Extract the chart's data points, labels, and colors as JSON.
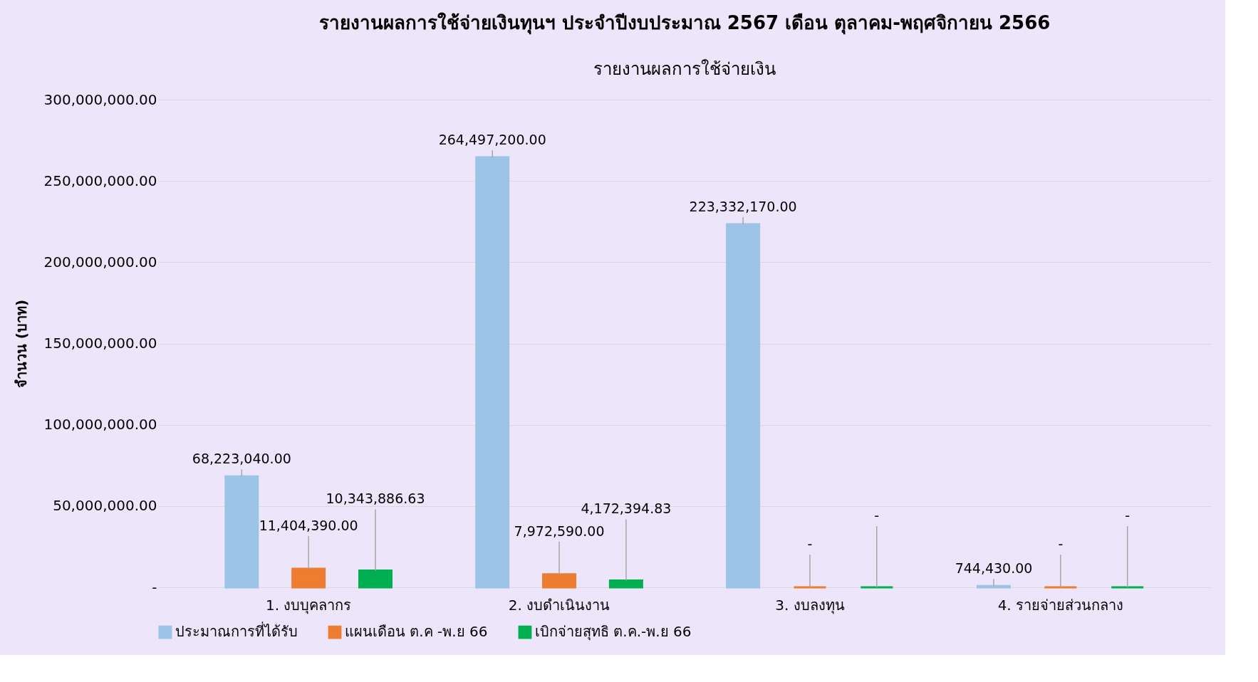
{
  "chart_data": {
    "type": "bar",
    "title": "รายงานผลการใช้จ่ายเงินทุนฯ ประจำปีงบประมาณ 2567 เดือน ตุลาคม-พฤศจิกายน 2566",
    "subtitle": "รายงานผลการใช้จ่ายเงิน",
    "ylabel": "จำนวน (บาท)",
    "categories": [
      "1. งบบุคลากร",
      "2. งบดำเนินงาน",
      "3. งบลงทุน",
      "4. รายจ่ายส่วนกลาง"
    ],
    "series": [
      {
        "name": "ประมาณการที่ได้รับ",
        "color": "#9dc3e6",
        "values": [
          68223040.0,
          264497200.0,
          223332170.0,
          744430.0
        ],
        "value_labels": [
          "68,223,040.00",
          "264,497,200.00",
          "223,332,170.00",
          "744,430.00"
        ]
      },
      {
        "name": "แผนเดือน ต.ค -พ.ย 66",
        "color": "#ed7d31",
        "values": [
          11404390.0,
          7972590.0,
          0,
          0
        ],
        "value_labels": [
          "11,404,390.00",
          "7,972,590.00",
          "-",
          "-"
        ]
      },
      {
        "name": "เบิกจ่ายสุทธิ ต.ค.-พ.ย 66",
        "color": "#00b050",
        "values": [
          10343886.63,
          4172394.83,
          0,
          0
        ],
        "value_labels": [
          "10,343,886.63",
          "4,172,394.83",
          "-",
          "-"
        ]
      }
    ],
    "ylim": [
      0,
      300000000
    ],
    "yticks": [
      {
        "value": 0,
        "label": "-"
      },
      {
        "value": 50000000,
        "label": "50,000,000.00"
      },
      {
        "value": 100000000,
        "label": "100,000,000.00"
      },
      {
        "value": 150000000,
        "label": "150,000,000.00"
      },
      {
        "value": 200000000,
        "label": "200,000,000.00"
      },
      {
        "value": 250000000,
        "label": "250,000,000.00"
      },
      {
        "value": 300000000,
        "label": "300,000,000.00"
      }
    ],
    "grid": "y",
    "legend": "bottom"
  }
}
